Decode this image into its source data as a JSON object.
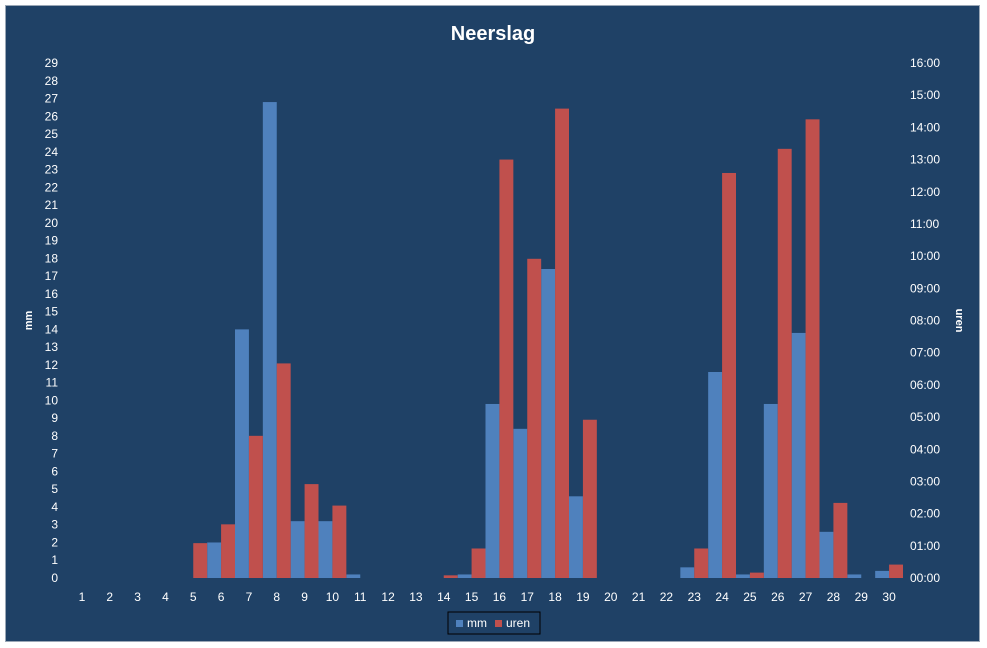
{
  "chart_data": {
    "type": "bar",
    "title": "Neerslag",
    "categories": [
      "1",
      "2",
      "3",
      "4",
      "5",
      "6",
      "7",
      "8",
      "9",
      "10",
      "11",
      "12",
      "13",
      "14",
      "15",
      "16",
      "17",
      "18",
      "19",
      "20",
      "21",
      "22",
      "23",
      "24",
      "25",
      "26",
      "27",
      "28",
      "29",
      "30"
    ],
    "series": [
      {
        "name": "mm",
        "axis": "left",
        "color": "#4f81bd",
        "values": [
          0,
          0,
          0,
          0,
          0,
          2.0,
          14.0,
          26.8,
          3.2,
          3.2,
          0.2,
          0,
          0,
          0,
          0.2,
          9.8,
          8.4,
          17.4,
          4.6,
          0,
          0,
          0,
          0.6,
          11.6,
          0.2,
          9.8,
          13.8,
          2.6,
          0.2,
          0.4
        ]
      },
      {
        "name": "uren",
        "axis": "right",
        "unit": "hours",
        "color": "#c0504d",
        "values": [
          0,
          0,
          0,
          0,
          1.083,
          1.667,
          4.417,
          6.667,
          2.917,
          2.25,
          0,
          0,
          0,
          0.083,
          0.917,
          13.0,
          9.917,
          14.583,
          4.917,
          0,
          0,
          0,
          0.917,
          12.583,
          0.167,
          13.333,
          14.25,
          2.333,
          0,
          0.417
        ]
      }
    ],
    "ylabel": "mm",
    "ylim": [
      0,
      29
    ],
    "yticks": [
      "0",
      "1",
      "2",
      "3",
      "4",
      "5",
      "6",
      "7",
      "8",
      "9",
      "10",
      "11",
      "12",
      "13",
      "14",
      "15",
      "16",
      "17",
      "18",
      "19",
      "20",
      "21",
      "22",
      "23",
      "24",
      "25",
      "26",
      "27",
      "28",
      "29"
    ],
    "y2label": "uren",
    "y2lim": [
      0,
      16
    ],
    "y2ticks": [
      "00:00",
      "01:00",
      "02:00",
      "03:00",
      "04:00",
      "05:00",
      "06:00",
      "07:00",
      "08:00",
      "09:00",
      "10:00",
      "11:00",
      "12:00",
      "13:00",
      "14:00",
      "15:00",
      "16:00"
    ],
    "grid": false,
    "legend_position": "bottom",
    "colors": {
      "background": "#1f4166",
      "text": "#ffffff"
    }
  }
}
